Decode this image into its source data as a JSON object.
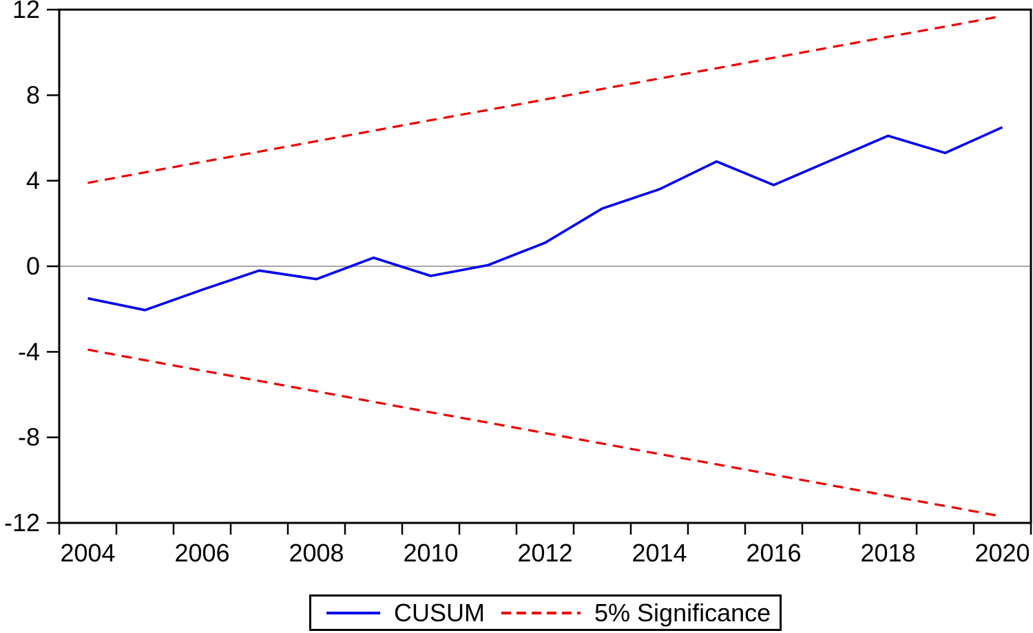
{
  "chart_data": {
    "type": "line",
    "title": "",
    "xlabel": "",
    "ylabel": "",
    "x": [
      2004,
      2005,
      2006,
      2007,
      2008,
      2009,
      2010,
      2011,
      2012,
      2013,
      2014,
      2015,
      2016,
      2017,
      2018,
      2019,
      2020
    ],
    "series": [
      {
        "name": "CUSUM",
        "style": "solid",
        "color_key": "cusum",
        "values": [
          -1.5,
          -2.05,
          -1.1,
          -0.2,
          -0.6,
          0.4,
          -0.45,
          0.05,
          1.1,
          2.7,
          3.6,
          4.9,
          3.8,
          4.95,
          6.1,
          5.3,
          6.5
        ]
      },
      {
        "name": "5% Significance (upper)",
        "style": "dashed",
        "color_key": "significance",
        "values": [
          3.9,
          4.39,
          4.88,
          5.36,
          5.85,
          6.34,
          6.83,
          7.31,
          7.8,
          8.29,
          8.78,
          9.26,
          9.75,
          10.24,
          10.73,
          11.21,
          11.7
        ]
      },
      {
        "name": "5% Significance (lower)",
        "style": "dashed",
        "color_key": "significance",
        "values": [
          -3.9,
          -4.39,
          -4.88,
          -5.36,
          -5.85,
          -6.34,
          -6.83,
          -7.31,
          -7.8,
          -8.29,
          -8.78,
          -9.26,
          -9.75,
          -10.24,
          -10.73,
          -11.21,
          -11.7
        ]
      }
    ],
    "ylim": [
      -12,
      12
    ],
    "y_ticks": [
      12,
      8,
      4,
      0,
      -4,
      -8,
      -12
    ],
    "x_tick_label_years": [
      2004,
      2006,
      2008,
      2010,
      2012,
      2014,
      2016,
      2018,
      2020
    ],
    "zero_line": true,
    "grid": false,
    "legend_position": "bottom-center"
  },
  "legend": {
    "cusum_label": "CUSUM",
    "significance_label": "5% Significance"
  },
  "colors": {
    "cusum": "#0000ee",
    "significance": "#ee0000",
    "zero_line": "#888888",
    "axis": "#000000",
    "background": "#ffffff"
  }
}
